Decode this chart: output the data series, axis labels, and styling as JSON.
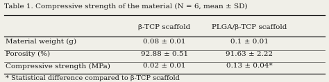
{
  "title": "Table 1. Compressive strength of the material (N = 6, mean ± SD)",
  "col_headers": [
    "β-TCP scaffold",
    "PLGA/β-TCP scaffold"
  ],
  "row_labels": [
    "Material weight (g)",
    "Porosity (%)",
    "Compressive strength (MPa)"
  ],
  "data": [
    [
      "0.08 ± 0.01",
      "0.1 ± 0.01"
    ],
    [
      "92.88 ± 0.51",
      "91.63 ± 2.22"
    ],
    [
      "0.02 ± 0.01",
      "0.13 ± 0.04*"
    ]
  ],
  "footnote": "* Statistical difference compared to β-TCP scaffold",
  "background_color": "#f0efe8",
  "text_color": "#1a1a1a",
  "font_size": 7.5,
  "title_font_size": 7.5,
  "footnote_font_size": 7.0
}
